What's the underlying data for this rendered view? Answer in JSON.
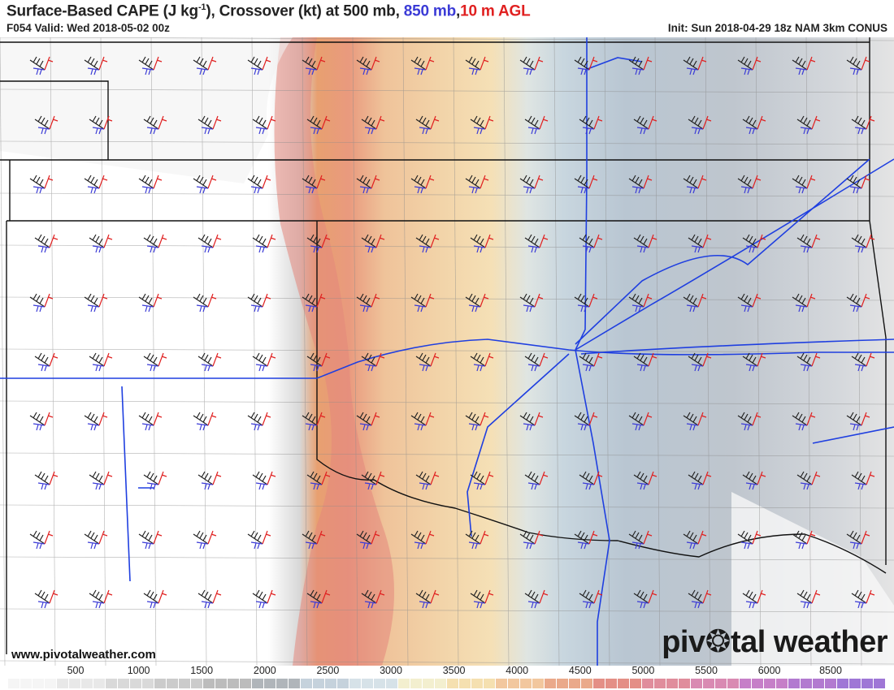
{
  "header": {
    "title_prefix": "Surface-Based CAPE (J kg",
    "title_sup": "-1",
    "title_mid": "), Crossover (kt) at 500 mb, ",
    "title_850": "850 mb",
    "title_comma": ",",
    "title_10m": "10 m AGL",
    "valid": "F054 Valid: Wed 2018-05-02 00z",
    "init": "Init: Sun 2018-04-29 18z NAM 3km CONUS"
  },
  "colors": {
    "mb500": "#222222",
    "mb850": "#3b3bd6",
    "m10": "#e02020",
    "roads": "#1f3fe0",
    "counties": "#8a8a8a",
    "states": "#111111"
  },
  "footer": {
    "website": "www.pivotalweather.com",
    "brand_a": "piv",
    "brand_b": "tal weather"
  },
  "colorbar": {
    "labels": [
      "500",
      "1000",
      "1500",
      "2000",
      "2500",
      "3000",
      "3500",
      "4000",
      "4500",
      "5000",
      "5500",
      "6000",
      "8500"
    ]
  },
  "map": {
    "fill_order": [
      "gray",
      "white",
      "yellow",
      "orange",
      "red",
      "orange",
      "yellow",
      "blue",
      "slate",
      "gray",
      "white"
    ]
  }
}
